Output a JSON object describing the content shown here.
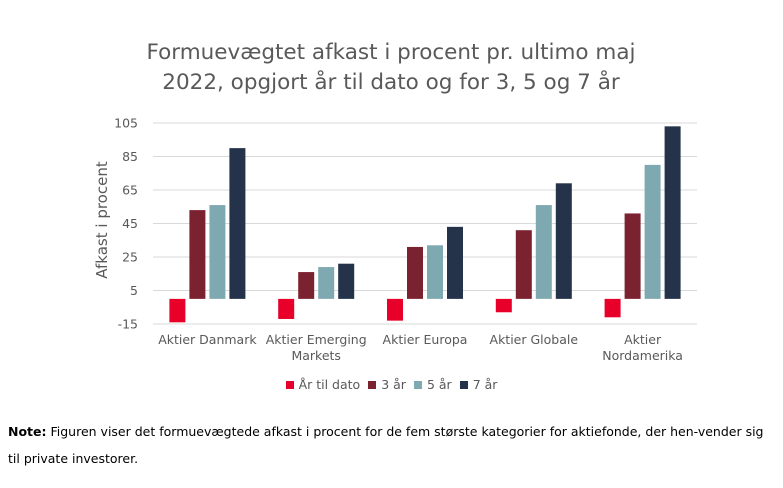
{
  "chart_data": {
    "type": "bar",
    "title_lines": [
      "Formuevægtet afkast i procent pr. ultimo maj",
      "2022, opgjort år til dato og for 3, 5 og 7 år"
    ],
    "ylabel": "Afkast i procent",
    "xlabel": "",
    "ylim": [
      -15,
      105
    ],
    "yticks": [
      -15,
      5,
      25,
      45,
      65,
      85,
      105
    ],
    "grid": true,
    "legend_position": "bottom",
    "categories": [
      [
        "Aktier Danmark"
      ],
      [
        "Aktier Emerging",
        "Markets"
      ],
      [
        "Aktier Europa"
      ],
      [
        "Aktier Globale"
      ],
      [
        "Aktier",
        "Nordamerika"
      ]
    ],
    "series": [
      {
        "name": "År til dato",
        "color": "#E8002A",
        "values": [
          -14,
          -12,
          -13,
          -8,
          -11
        ]
      },
      {
        "name": "3 år",
        "color": "#7B2230",
        "values": [
          53,
          16,
          31,
          41,
          51
        ]
      },
      {
        "name": "5 år",
        "color": "#7FA9B1",
        "values": [
          56,
          19,
          32,
          56,
          80
        ]
      },
      {
        "name": "7 år",
        "color": "#24324A",
        "values": [
          90,
          21,
          43,
          69,
          103
        ]
      }
    ]
  },
  "note": {
    "label": "Note:",
    "text": " Figuren viser det formuevægtede afkast i procent for de fem største kategorier for aktiefonde, der hen-vender sig til private investorer."
  }
}
